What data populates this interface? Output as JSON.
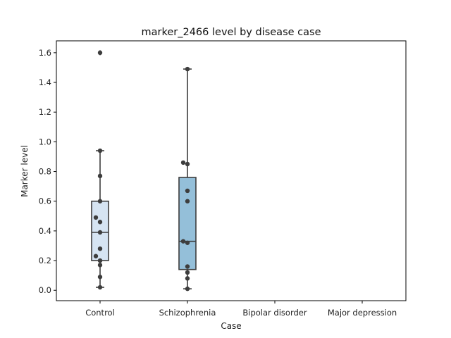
{
  "chart_data": {
    "type": "box",
    "title": "marker_2466 level by disease case",
    "xlabel": "Case",
    "ylabel": "Marker level",
    "categories": [
      "Control",
      "Schizophrenia",
      "Bipolar disorder",
      "Major depression"
    ],
    "ylim": [
      -0.07,
      1.68
    ],
    "yticks": [
      0.0,
      0.2,
      0.4,
      0.6,
      0.8,
      1.0,
      1.2,
      1.4,
      1.6
    ],
    "ytick_labels": [
      "0.0",
      "0.2",
      "0.4",
      "0.6",
      "0.8",
      "1.0",
      "1.2",
      "1.4",
      "1.6"
    ],
    "grid": false,
    "boxes": [
      {
        "category": "Control",
        "whisker_low": 0.02,
        "q1": 0.2,
        "median": 0.39,
        "q3": 0.6,
        "whisker_high": 0.94,
        "outliers": [
          1.6
        ],
        "color": "#d6e4f2"
      },
      {
        "category": "Schizophrenia",
        "whisker_low": 0.01,
        "q1": 0.14,
        "median": 0.33,
        "q3": 0.76,
        "whisker_high": 1.49,
        "outliers": [],
        "color": "#94bfd9"
      },
      {
        "category": "Bipolar disorder",
        "empty": true
      },
      {
        "category": "Major depression",
        "empty": true
      }
    ],
    "points": [
      {
        "category": "Control",
        "values": [
          0.02,
          0.09,
          0.17,
          0.2,
          0.23,
          0.28,
          0.39,
          0.46,
          0.49,
          0.6,
          0.77,
          0.94,
          1.6
        ],
        "offsets": [
          0,
          0,
          0,
          0,
          -1,
          0,
          0,
          0,
          -1,
          0,
          0,
          0,
          0
        ]
      },
      {
        "category": "Schizophrenia",
        "values": [
          0.01,
          0.08,
          0.12,
          0.16,
          0.32,
          0.33,
          0.6,
          0.67,
          0.85,
          0.86,
          1.49
        ],
        "offsets": [
          0,
          0,
          0,
          0,
          0,
          -1,
          0,
          0,
          0,
          -1,
          0
        ]
      }
    ],
    "colors": {
      "box_edge": "#3d3d3d",
      "point": "#3d3d3d",
      "axes": "#000000"
    }
  }
}
